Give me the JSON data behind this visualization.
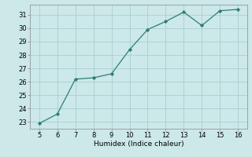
{
  "x": [
    5,
    6,
    7,
    8,
    9,
    10,
    11,
    12,
    13,
    14,
    15,
    16
  ],
  "y": [
    22.9,
    23.6,
    26.2,
    26.3,
    26.6,
    28.4,
    29.9,
    30.5,
    31.2,
    30.2,
    31.3,
    31.4
  ],
  "line_color": "#2d7f72",
  "marker_color": "#2d7f72",
  "bg_color": "#cce8e8",
  "grid_color": "#aacfcf",
  "xlabel": "Humidex (Indice chaleur)",
  "xlim": [
    4.5,
    16.5
  ],
  "ylim": [
    22.5,
    31.75
  ],
  "xticks": [
    5,
    6,
    7,
    8,
    9,
    10,
    11,
    12,
    13,
    14,
    15,
    16
  ],
  "yticks": [
    23,
    24,
    25,
    26,
    27,
    28,
    29,
    30,
    31
  ],
  "label_fontsize": 6.5,
  "tick_fontsize": 6.0
}
